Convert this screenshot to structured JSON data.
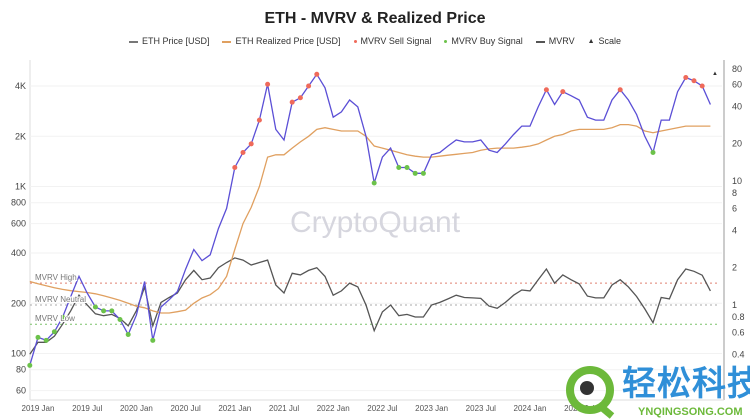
{
  "chart_data": {
    "type": "line",
    "title": "ETH - MVRV & Realized Price",
    "legend": {
      "placement": "top",
      "entries": [
        "ETH Price [USD]",
        "ETH Realized Price [USD]",
        "MVRV Sell Signal",
        "MVRV Buy Signal",
        "MVRV",
        "Scale"
      ]
    },
    "watermark": "CryptoQuant",
    "colors": {
      "price": "#5b4fd6",
      "realized": "#e0a060",
      "sell": "#ef6a5a",
      "buy": "#6cc24a",
      "mvrv": "#555555",
      "high_line": "#e08070",
      "neutral_line": "#aaaaaa",
      "low_line": "#7cc26a"
    },
    "x_ticks": [
      "2019 Jan",
      "2019 Jul",
      "2020 Jan",
      "2020 Jul",
      "2021 Jan",
      "2021 Jul",
      "2022 Jan",
      "2022 Jul",
      "2023 Jan",
      "2023 Jul",
      "2024 Jan",
      "2024 Jul"
    ],
    "x_tick_dates": [
      "2019-01",
      "2019-07",
      "2020-01",
      "2020-07",
      "2021-01",
      "2021-07",
      "2022-01",
      "2022-07",
      "2023-01",
      "2023-07",
      "2024-01",
      "2024-07"
    ],
    "left_axis": {
      "scale": "log",
      "ticks": [
        60,
        80,
        100,
        200,
        400,
        600,
        800,
        1000,
        2000,
        4000
      ],
      "tick_labels": [
        "60",
        "80",
        "100",
        "200",
        "400",
        "600",
        "800",
        "1K",
        "2K",
        "4K"
      ]
    },
    "right_axis": {
      "scale": "log",
      "ticks": [
        0.4,
        0.6,
        0.8,
        1,
        2,
        4,
        6,
        8,
        10,
        20,
        40,
        60,
        80
      ],
      "tick_labels": [
        "0.4",
        "0.6",
        "0.8",
        "1",
        "2",
        "4",
        "6",
        "8",
        "10",
        "20",
        "40",
        "60",
        "80"
      ]
    },
    "grid": true,
    "reference_lines": [
      {
        "label": "MVRV High",
        "value": 1.5
      },
      {
        "label": "MVRV Neutral",
        "value": 1.0
      },
      {
        "label": "MVRV Low",
        "value": 0.7
      }
    ],
    "dates": [
      "2018-12",
      "2019-01",
      "2019-02",
      "2019-03",
      "2019-04",
      "2019-05",
      "2019-06",
      "2019-07",
      "2019-08",
      "2019-09",
      "2019-10",
      "2019-11",
      "2019-12",
      "2020-01",
      "2020-02",
      "2020-03",
      "2020-04",
      "2020-05",
      "2020-06",
      "2020-07",
      "2020-08",
      "2020-09",
      "2020-10",
      "2020-11",
      "2020-12",
      "2021-01",
      "2021-02",
      "2021-03",
      "2021-04",
      "2021-05",
      "2021-06",
      "2021-07",
      "2021-08",
      "2021-09",
      "2021-10",
      "2021-11",
      "2021-12",
      "2022-01",
      "2022-02",
      "2022-03",
      "2022-04",
      "2022-05",
      "2022-06",
      "2022-07",
      "2022-08",
      "2022-09",
      "2022-10",
      "2022-11",
      "2022-12",
      "2023-01",
      "2023-02",
      "2023-03",
      "2023-04",
      "2023-05",
      "2023-06",
      "2023-07",
      "2023-08",
      "2023-09",
      "2023-10",
      "2023-11",
      "2023-12",
      "2024-01",
      "2024-02",
      "2024-03",
      "2024-04",
      "2024-05",
      "2024-06",
      "2024-07",
      "2024-08",
      "2024-09",
      "2024-10",
      "2024-11",
      "2024-12",
      "2025-01",
      "2025-02",
      "2025-03",
      "2025-04",
      "2025-05",
      "2025-06",
      "2025-07",
      "2025-08",
      "2025-09",
      "2025-10",
      "2025-11"
    ],
    "series": [
      {
        "name": "ETH Price [USD]",
        "axis": "left",
        "values": [
          85,
          125,
          120,
          135,
          165,
          220,
          290,
          230,
          190,
          180,
          180,
          160,
          130,
          170,
          270,
          120,
          190,
          210,
          235,
          320,
          420,
          360,
          390,
          560,
          740,
          1300,
          1600,
          1800,
          2500,
          4100,
          2200,
          1900,
          3200,
          3400,
          4000,
          4700,
          3900,
          2600,
          2800,
          3300,
          3000,
          2000,
          1050,
          1500,
          1700,
          1300,
          1300,
          1200,
          1200,
          1550,
          1600,
          1750,
          1900,
          1850,
          1850,
          1900,
          1650,
          1600,
          1800,
          2050,
          2300,
          2300,
          3000,
          3800,
          3100,
          3700,
          3500,
          3300,
          2600,
          2500,
          2500,
          3300,
          3800,
          3300,
          2700,
          2000,
          1600,
          2500,
          2500,
          3700,
          4500,
          4300,
          4000,
          3100
        ]
      },
      {
        "name": "ETH Realized Price [USD]",
        "axis": "left",
        "values": [
          270,
          262,
          255,
          248,
          242,
          238,
          235,
          232,
          228,
          222,
          215,
          208,
          200,
          192,
          188,
          180,
          175,
          175,
          178,
          182,
          200,
          215,
          225,
          245,
          290,
          420,
          600,
          750,
          1000,
          1500,
          1550,
          1550,
          1700,
          1850,
          2000,
          2200,
          2250,
          2200,
          2150,
          2150,
          2150,
          2000,
          1750,
          1700,
          1650,
          1600,
          1550,
          1520,
          1500,
          1500,
          1520,
          1540,
          1560,
          1580,
          1600,
          1650,
          1680,
          1700,
          1700,
          1700,
          1720,
          1750,
          1800,
          1900,
          2000,
          2050,
          2150,
          2200,
          2200,
          2200,
          2200,
          2250,
          2350,
          2350,
          2300,
          2150,
          2100,
          2150,
          2200,
          2250,
          2300,
          2300,
          2300,
          2300
        ]
      },
      {
        "name": "MVRV",
        "axis": "right",
        "values": [
          0.4,
          0.5,
          0.5,
          0.56,
          0.7,
          0.9,
          1.2,
          1.0,
          0.85,
          0.82,
          0.84,
          0.78,
          0.68,
          0.9,
          1.4,
          0.68,
          1.05,
          1.15,
          1.25,
          1.6,
          1.9,
          1.6,
          1.65,
          2.0,
          2.2,
          2.4,
          2.3,
          2.1,
          2.2,
          2.3,
          1.45,
          1.25,
          1.8,
          1.75,
          1.9,
          2.0,
          1.7,
          1.2,
          1.3,
          1.5,
          1.4,
          1.0,
          0.62,
          0.88,
          1.0,
          0.82,
          0.84,
          0.8,
          0.8,
          1.0,
          1.05,
          1.12,
          1.2,
          1.15,
          1.14,
          1.13,
          0.98,
          0.94,
          1.05,
          1.2,
          1.32,
          1.3,
          1.6,
          1.95,
          1.5,
          1.75,
          1.6,
          1.48,
          1.18,
          1.14,
          1.14,
          1.45,
          1.6,
          1.4,
          1.17,
          0.93,
          0.72,
          1.15,
          1.12,
          1.6,
          1.95,
          1.87,
          1.74,
          1.3
        ]
      }
    ],
    "sell_signal_dates": [
      "2021-01",
      "2021-02",
      "2021-03",
      "2021-04",
      "2021-05",
      "2021-08",
      "2021-09",
      "2021-10",
      "2021-11",
      "2024-03",
      "2024-05",
      "2024-12",
      "2025-08",
      "2025-09",
      "2025-10"
    ],
    "buy_signal_dates": [
      "2018-12",
      "2019-01",
      "2019-02",
      "2019-03",
      "2019-04",
      "2019-08",
      "2019-09",
      "2019-10",
      "2019-11",
      "2019-12",
      "2020-03",
      "2022-06",
      "2022-09",
      "2022-10",
      "2022-11",
      "2022-12",
      "2025-04"
    ]
  },
  "logo": {
    "chinese": "轻松科技",
    "english": "YNQINGSONG.COM"
  }
}
